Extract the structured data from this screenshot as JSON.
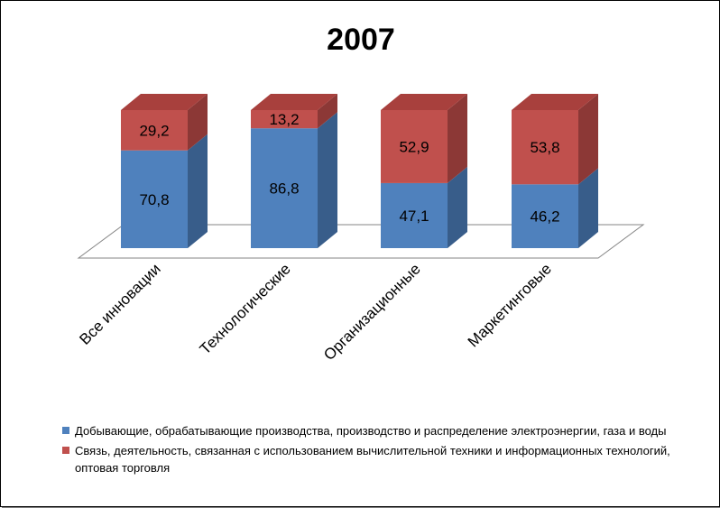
{
  "chart_data": {
    "type": "bar",
    "stacked": true,
    "three_d": true,
    "title": "2007",
    "categories": [
      "Все инновации",
      "Технологические",
      "Организационные",
      "Маркетинговые"
    ],
    "series": [
      {
        "name": "Добывающие, обрабатывающие производства, производство и распределение электроэнергии, газа и воды",
        "color": "#4f81bd",
        "values": [
          70.8,
          86.8,
          47.1,
          46.2
        ],
        "labels": [
          "70,8",
          "86,8",
          "47,1",
          "46,2"
        ]
      },
      {
        "name": "Связь, деятельность, связанная с использованием вычислительной техники и информационных технологий, оптовая торговля",
        "color": "#c0504d",
        "values": [
          29.2,
          13.2,
          52.9,
          53.8
        ],
        "labels": [
          "29,2",
          "13,2",
          "52,9",
          "53,8"
        ]
      }
    ],
    "ylim": [
      0,
      100
    ],
    "legend_position": "bottom",
    "grid": false
  }
}
